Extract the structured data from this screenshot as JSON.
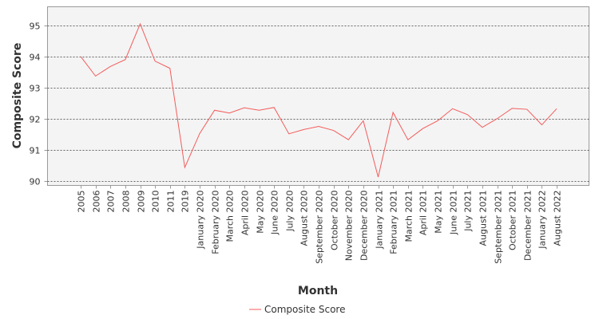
{
  "chart_data": {
    "type": "line",
    "title": "",
    "xlabel": "Month",
    "ylabel": "Composite Score",
    "ylim": [
      89.85,
      95.6
    ],
    "yticks": [
      90,
      91,
      92,
      93,
      94,
      95
    ],
    "grid": true,
    "legend": "bottom-center",
    "categories": [
      "2005",
      "2006",
      "2007",
      "2008",
      "2009",
      "2010",
      "2011",
      "2019",
      "January 2020",
      "February 2020",
      "March 2020",
      "April 2020",
      "May 2020",
      "June 2020",
      "July 2020",
      "August 2020",
      "September 2020",
      "October 2020",
      "November 2020",
      "December 2020",
      "January 2021",
      "February 2021",
      "March 2021",
      "April 2021",
      "May 2021",
      "June 2021",
      "July 2021",
      "August 2021",
      "September 2021",
      "October 2021",
      "December 2021",
      "January 2022",
      "August 2022"
    ],
    "series": [
      {
        "name": "Composite Score",
        "color": "#f45b5b",
        "values": [
          94.0,
          93.37,
          93.68,
          93.9,
          95.05,
          93.85,
          93.62,
          90.43,
          91.52,
          92.27,
          92.18,
          92.35,
          92.27,
          92.36,
          91.51,
          91.65,
          91.75,
          91.62,
          91.32,
          91.93,
          90.12,
          92.2,
          91.32,
          91.68,
          91.93,
          92.32,
          92.13,
          91.72,
          92.0,
          92.33,
          92.3,
          91.8,
          92.32
        ]
      }
    ]
  }
}
